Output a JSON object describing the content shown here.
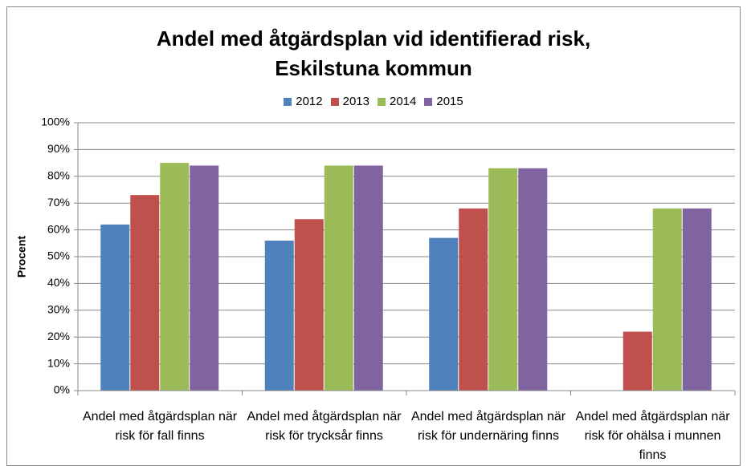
{
  "chart_data": {
    "type": "bar",
    "title": [
      "Andel med åtgärdsplan vid identifierad risk,",
      "Eskilstuna kommun"
    ],
    "y_label": "Procent",
    "categories": [
      "Andel med åtgärdsplan när risk för fall finns",
      "Andel med åtgärdsplan när risk för trycksår finns",
      "Andel med åtgärdsplan när risk för undernäring finns",
      "Andel med åtgärdsplan när risk för ohälsa i munnen finns"
    ],
    "series": [
      {
        "name": "2012",
        "color": "#4f81bd",
        "values": [
          62,
          56,
          57,
          null
        ]
      },
      {
        "name": "2013",
        "color": "#c0504d",
        "values": [
          73,
          64,
          68,
          22
        ]
      },
      {
        "name": "2014",
        "color": "#9bbb59",
        "values": [
          85,
          84,
          83,
          68
        ]
      },
      {
        "name": "2015",
        "color": "#8064a2",
        "values": [
          84,
          84,
          83,
          68
        ]
      }
    ],
    "ylim": [
      0,
      100
    ],
    "yticks": [
      {
        "value": 0,
        "label": "0%"
      },
      {
        "value": 10,
        "label": "10%"
      },
      {
        "value": 20,
        "label": "20%"
      },
      {
        "value": 30,
        "label": "30%"
      },
      {
        "value": 40,
        "label": "40%"
      },
      {
        "value": 50,
        "label": "50%"
      },
      {
        "value": 60,
        "label": "60%"
      },
      {
        "value": 70,
        "label": "70%"
      },
      {
        "value": 80,
        "label": "80%"
      },
      {
        "value": 90,
        "label": "90%"
      },
      {
        "value": 100,
        "label": "100%"
      }
    ],
    "grid": true,
    "legend": "top"
  }
}
